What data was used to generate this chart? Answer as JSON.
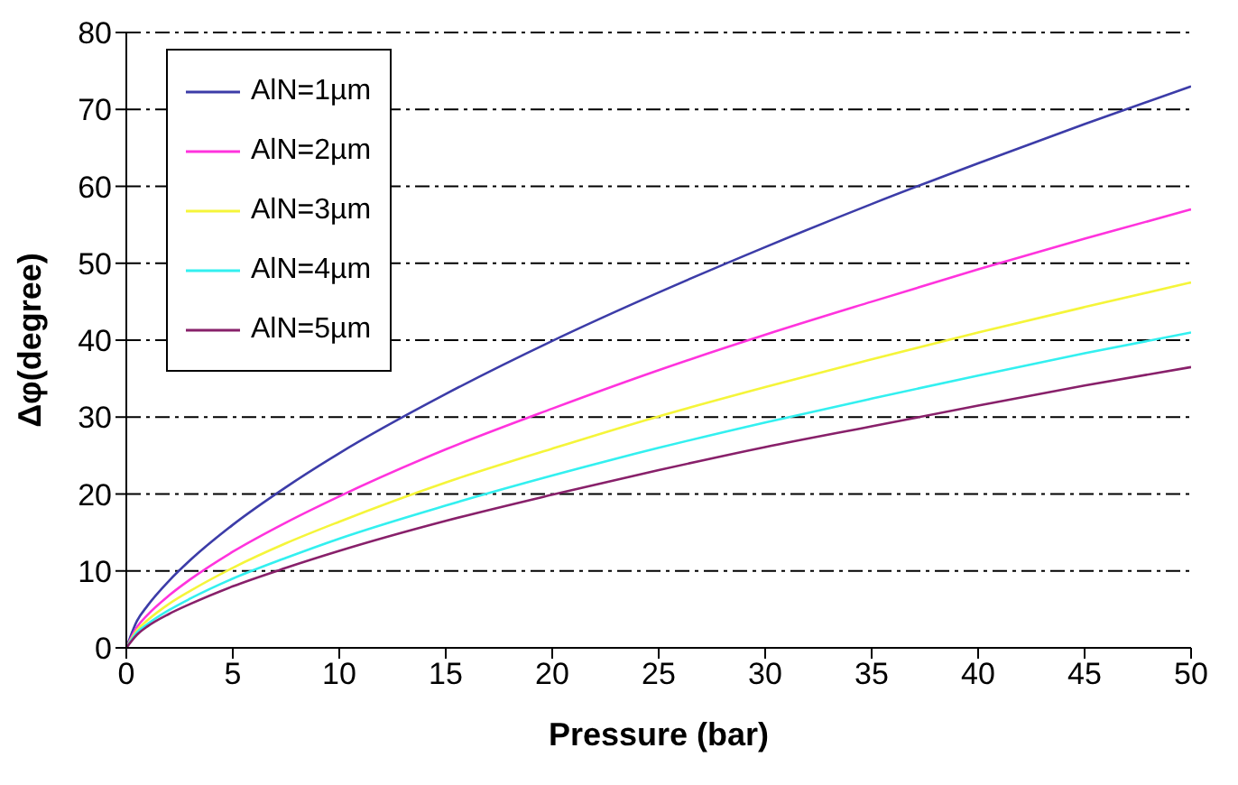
{
  "chart_data": {
    "type": "line",
    "xlabel": "Pressure (bar)",
    "ylabel": "Δφ(degree)",
    "x": [
      0,
      0.5,
      1,
      2,
      3,
      5,
      7.5,
      10,
      15,
      20,
      25,
      30,
      35,
      40,
      45,
      50
    ],
    "series": [
      {
        "name": "AlN=1µm",
        "color": "#3c3ca8",
        "values": [
          0,
          3.5,
          5.5,
          8.7,
          11.4,
          16.0,
          20.9,
          25.3,
          33.0,
          39.9,
          46.2,
          52.1,
          57.7,
          63.0,
          68.1,
          73
        ]
      },
      {
        "name": "AlN=2µm",
        "color": "#ff33dd",
        "values": [
          0,
          2.7,
          4.3,
          6.8,
          8.9,
          12.5,
          16.3,
          19.7,
          25.8,
          31.1,
          36.1,
          40.7,
          45.0,
          49.2,
          53.2,
          57
        ]
      },
      {
        "name": "AlN=3µm",
        "color": "#f5f53a",
        "values": [
          0,
          2.3,
          3.6,
          5.7,
          7.4,
          10.4,
          13.6,
          16.4,
          21.5,
          25.9,
          30.1,
          33.9,
          37.5,
          41.0,
          44.3,
          47.5
        ]
      },
      {
        "name": "AlN=4µm",
        "color": "#33f0f0",
        "values": [
          0,
          2.0,
          3.1,
          4.9,
          6.4,
          9.0,
          11.7,
          14.2,
          18.5,
          22.4,
          26.0,
          29.3,
          32.4,
          35.4,
          38.3,
          41
        ]
      },
      {
        "name": "AlN=5µm",
        "color": "#88206a",
        "values": [
          0,
          1.7,
          2.8,
          4.4,
          5.7,
          8.0,
          10.4,
          12.6,
          16.5,
          19.9,
          23.1,
          26.1,
          28.8,
          31.5,
          34.1,
          36.5
        ]
      }
    ],
    "xlim": [
      0,
      50
    ],
    "xticks": [
      0,
      5,
      10,
      15,
      20,
      25,
      30,
      35,
      40,
      45,
      50
    ],
    "ylim": [
      0,
      80
    ],
    "yticks": [
      0,
      10,
      20,
      30,
      40,
      50,
      60,
      70,
      80
    ],
    "grid": "y",
    "legend": "top left",
    "marker": "none",
    "line_style": "solid"
  }
}
